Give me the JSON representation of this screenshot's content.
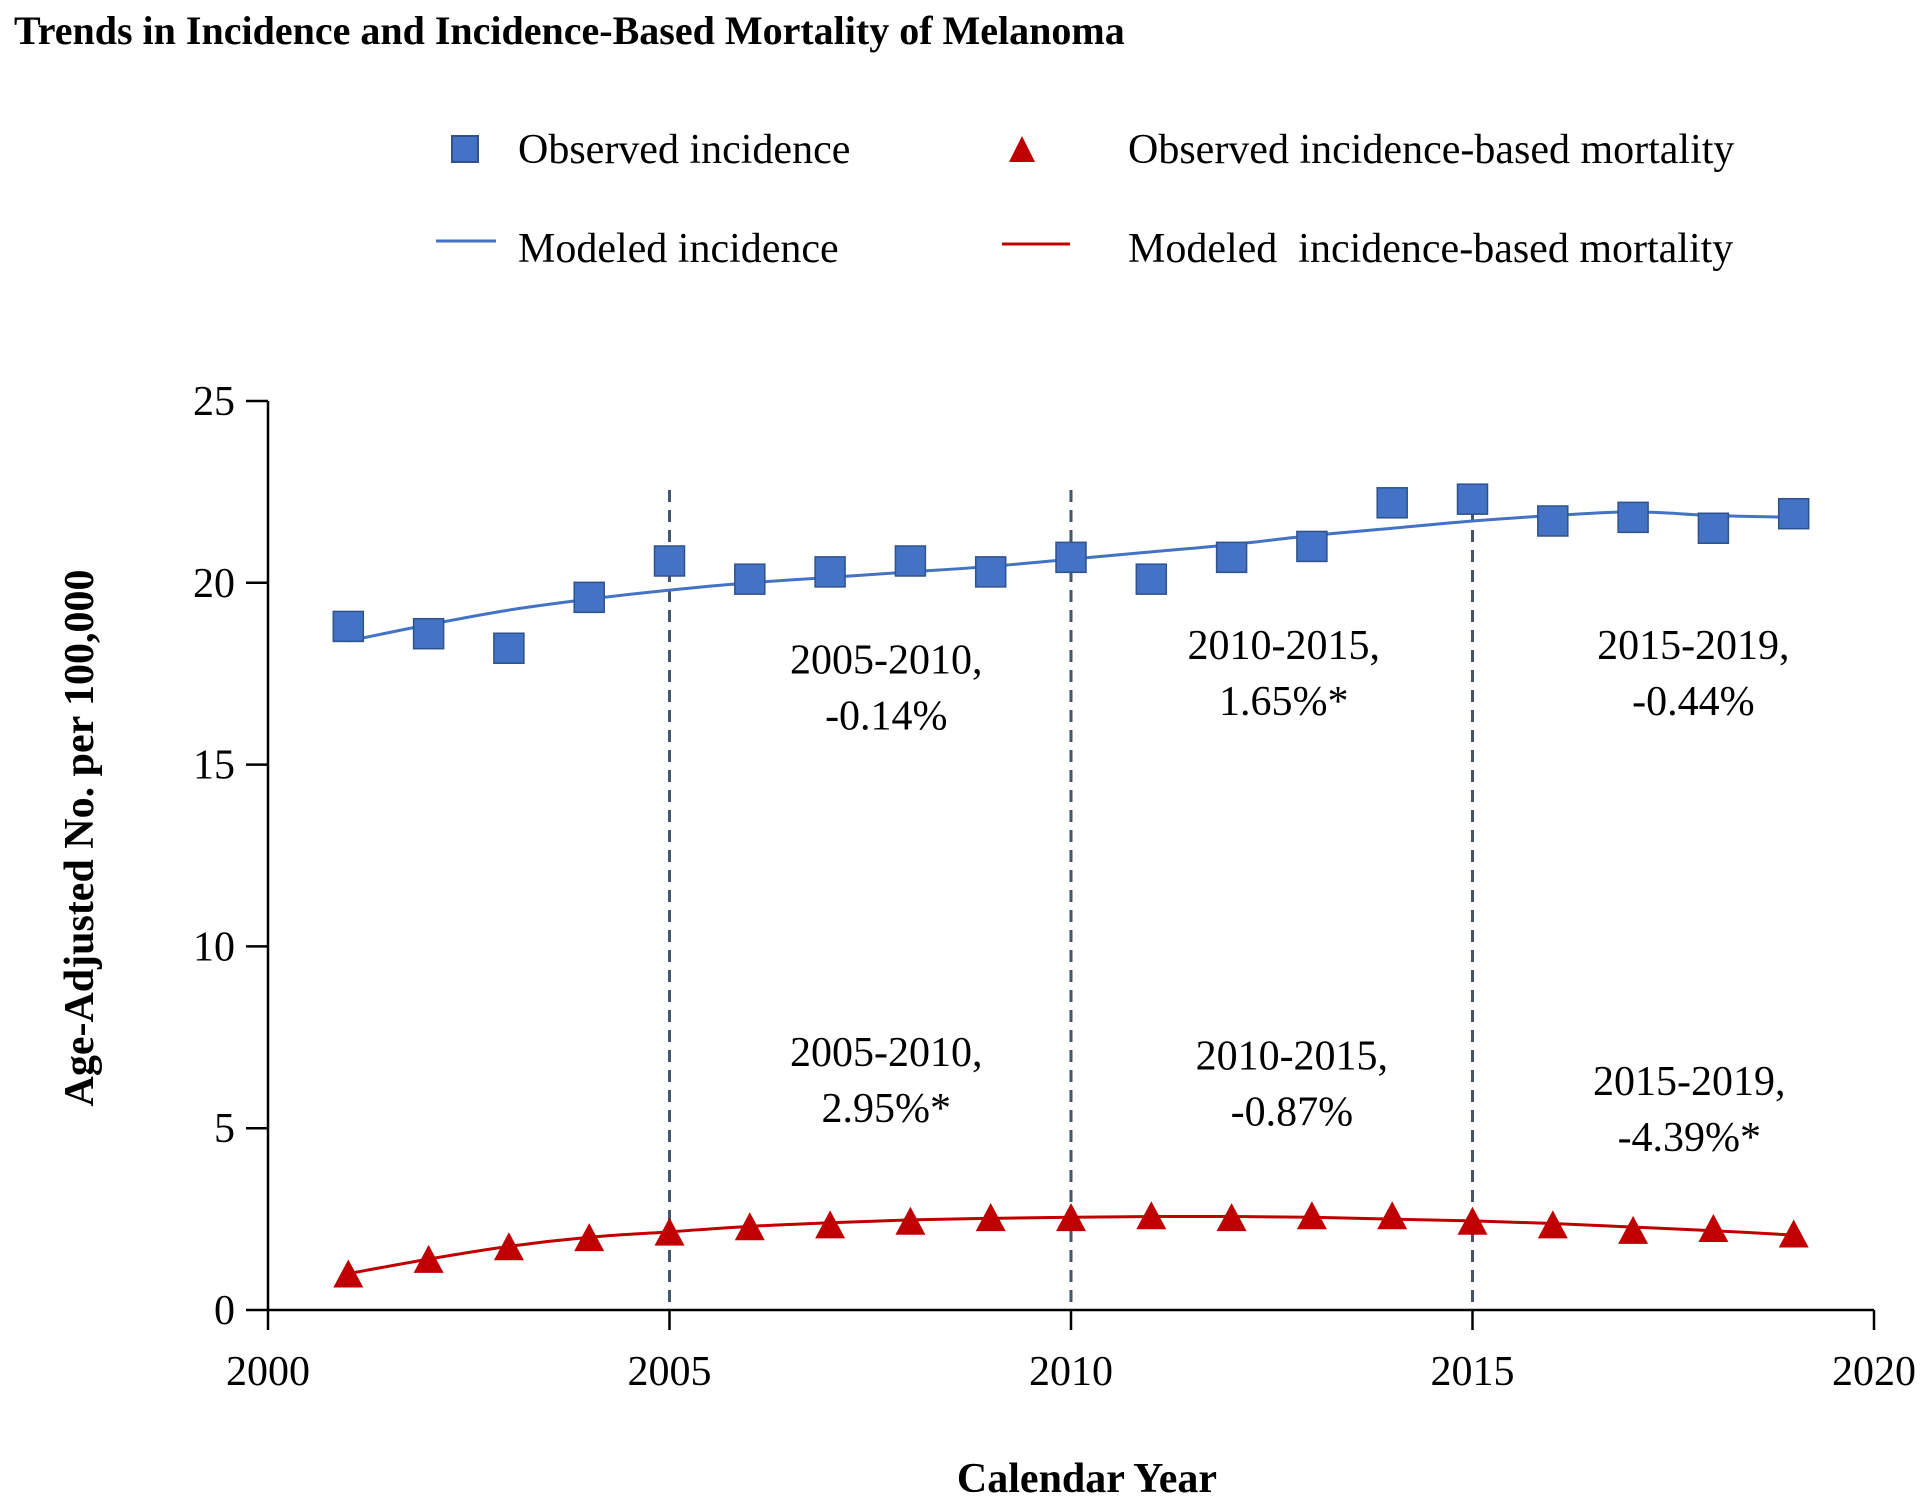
{
  "chart_data": {
    "type": "scatter",
    "title": "Trends in Incidence and Incidence-Based Mortality of Melanoma",
    "xlabel": "Calendar Year",
    "ylabel": "Age-Adjusted No. per 100,000",
    "xlim": [
      2000,
      2020
    ],
    "ylim": [
      0,
      25
    ],
    "xticks": [
      2000,
      2005,
      2010,
      2015,
      2020
    ],
    "yticks": [
      0,
      5,
      10,
      15,
      20,
      25
    ],
    "x": [
      2001,
      2002,
      2003,
      2004,
      2005,
      2006,
      2007,
      2008,
      2009,
      2010,
      2011,
      2012,
      2013,
      2014,
      2015,
      2016,
      2017,
      2018,
      2019
    ],
    "series": [
      {
        "name": "Observed incidence",
        "kind": "marker",
        "marker": "square",
        "color": "#4472C4",
        "values": [
          18.8,
          18.6,
          18.2,
          19.6,
          20.6,
          20.1,
          20.3,
          20.6,
          20.3,
          20.7,
          20.1,
          20.7,
          21.0,
          22.2,
          22.3,
          21.7,
          21.8,
          21.5,
          21.9
        ]
      },
      {
        "name": "Modeled incidence",
        "kind": "line",
        "color": "#4472C4",
        "values": [
          18.4,
          18.85,
          19.25,
          19.55,
          19.8,
          20.0,
          20.15,
          20.3,
          20.45,
          20.65,
          20.85,
          21.05,
          21.3,
          21.5,
          21.7,
          21.85,
          21.95,
          21.85,
          21.8
        ]
      },
      {
        "name": "Observed incidence-based mortality",
        "kind": "marker",
        "marker": "triangle",
        "color": "#C00000",
        "values": [
          0.95,
          1.35,
          1.7,
          1.95,
          2.1,
          2.25,
          2.3,
          2.4,
          2.5,
          2.5,
          2.55,
          2.5,
          2.55,
          2.55,
          2.4,
          2.3,
          2.15,
          2.2,
          2.05
        ]
      },
      {
        "name": "Modeled  incidence-based mortality",
        "kind": "line",
        "color": "#C00000",
        "values": [
          1.0,
          1.4,
          1.75,
          2.0,
          2.15,
          2.3,
          2.4,
          2.48,
          2.52,
          2.55,
          2.57,
          2.57,
          2.55,
          2.5,
          2.45,
          2.38,
          2.28,
          2.18,
          2.06
        ]
      }
    ],
    "joinpoints": [
      2005,
      2010,
      2015
    ],
    "annotations": [
      {
        "line1": "2005-2010,",
        "line2": "-0.14%",
        "x": 2007.7,
        "y": 17.4
      },
      {
        "line1": "2010-2015,",
        "line2": "1.65%*",
        "x": 2012.65,
        "y": 17.8
      },
      {
        "line1": "2015-2019,",
        "line2": "-0.44%",
        "x": 2017.75,
        "y": 17.8
      },
      {
        "line1": "2005-2010,",
        "line2": "2.95%*",
        "x": 2007.7,
        "y": 6.6
      },
      {
        "line1": "2010-2015,",
        "line2": "-0.87%",
        "x": 2012.75,
        "y": 6.5
      },
      {
        "line1": "2015-2019,",
        "line2": "-4.39%*",
        "x": 2017.7,
        "y": 5.8
      }
    ]
  }
}
